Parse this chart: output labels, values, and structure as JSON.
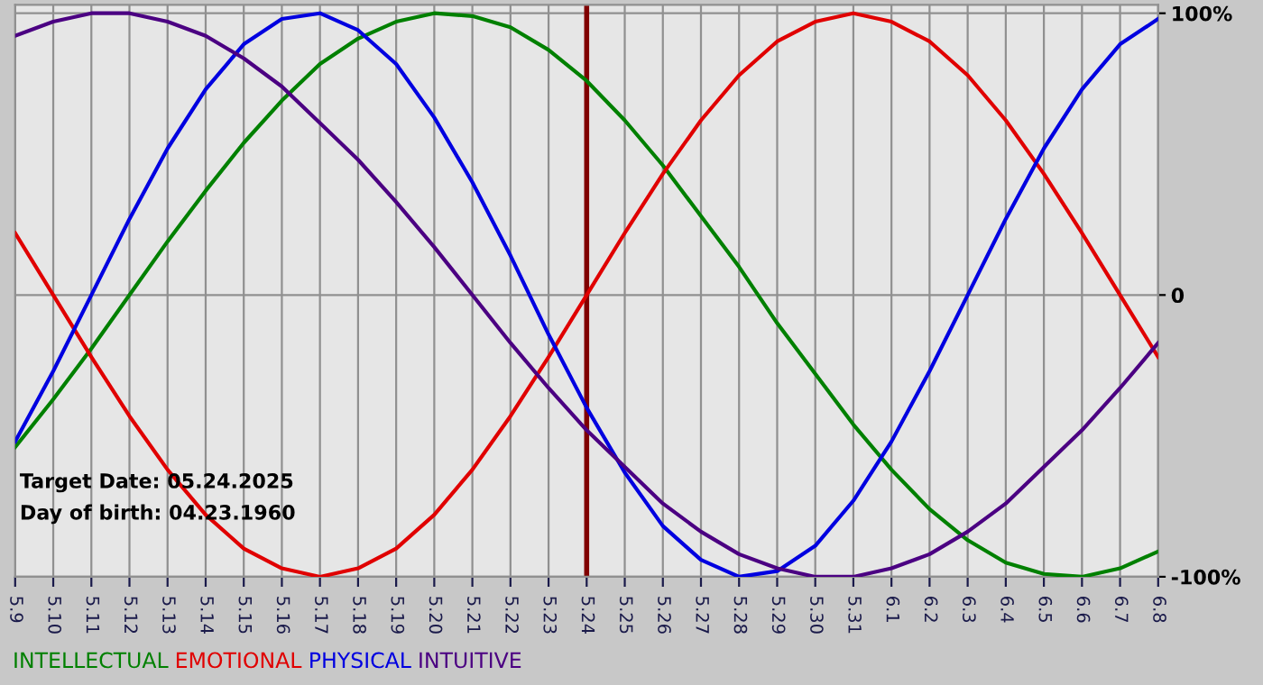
{
  "chart_data": {
    "type": "line",
    "categories": [
      "5.9",
      "5.10",
      "5.11",
      "5.12",
      "5.13",
      "5.14",
      "5.15",
      "5.16",
      "5.17",
      "5.18",
      "5.19",
      "5.20",
      "5.21",
      "5.22",
      "5.23",
      "5.24",
      "5.25",
      "5.26",
      "5.27",
      "5.28",
      "5.29",
      "5.30",
      "5.31",
      "6.1",
      "6.2",
      "6.3",
      "6.4",
      "6.5",
      "6.6",
      "6.7",
      "6.8"
    ],
    "series": [
      {
        "name": "INTELLECTUAL",
        "color": "#008000",
        "values": [
          -54,
          -37,
          -19,
          0,
          19,
          37,
          54,
          69,
          82,
          91,
          97,
          100,
          99,
          95,
          87,
          76,
          62,
          46,
          28,
          10,
          -10,
          -28,
          -46,
          -62,
          -76,
          -87,
          -95,
          -99,
          -100,
          -97,
          -91
        ]
      },
      {
        "name": "EMOTIONAL",
        "color": "#e00000",
        "values": [
          22,
          0,
          -22,
          -43,
          -62,
          -78,
          -90,
          -97,
          -100,
          -97,
          -90,
          -78,
          -62,
          -43,
          -22,
          0,
          22,
          43,
          62,
          78,
          90,
          97,
          100,
          97,
          90,
          78,
          62,
          43,
          22,
          0,
          -22
        ]
      },
      {
        "name": "PHYSICAL",
        "color": "#0000e0",
        "values": [
          -52,
          -27,
          0,
          27,
          52,
          73,
          89,
          98,
          100,
          94,
          82,
          63,
          40,
          14,
          -14,
          -40,
          -63,
          -82,
          -94,
          -100,
          -98,
          -89,
          -73,
          -52,
          -27,
          0,
          27,
          52,
          73,
          89,
          98
        ]
      },
      {
        "name": "INTUITIVE",
        "color": "#4b0082",
        "values": [
          92,
          97,
          100,
          100,
          97,
          92,
          84,
          74,
          61,
          48,
          33,
          17,
          0,
          -17,
          -33,
          -48,
          -61,
          -74,
          -84,
          -92,
          -97,
          -100,
          -100,
          -97,
          -92,
          -84,
          -74,
          -61,
          -48,
          -33,
          -17
        ]
      }
    ],
    "ylim": [
      -100,
      103
    ],
    "yticks": [
      {
        "value": -100,
        "label": "-100%"
      },
      0,
      {
        "value": 100,
        "label": "100%"
      }
    ],
    "grid": true,
    "legend": "bottom",
    "marker": "none",
    "line_style": "solid",
    "ref_lines": [
      {
        "axis": "x",
        "value": "5.24",
        "color": "#800000"
      }
    ],
    "annotations": [
      "Target Date: 05.24.2025",
      "Day of birth: 04.23.1960"
    ]
  }
}
